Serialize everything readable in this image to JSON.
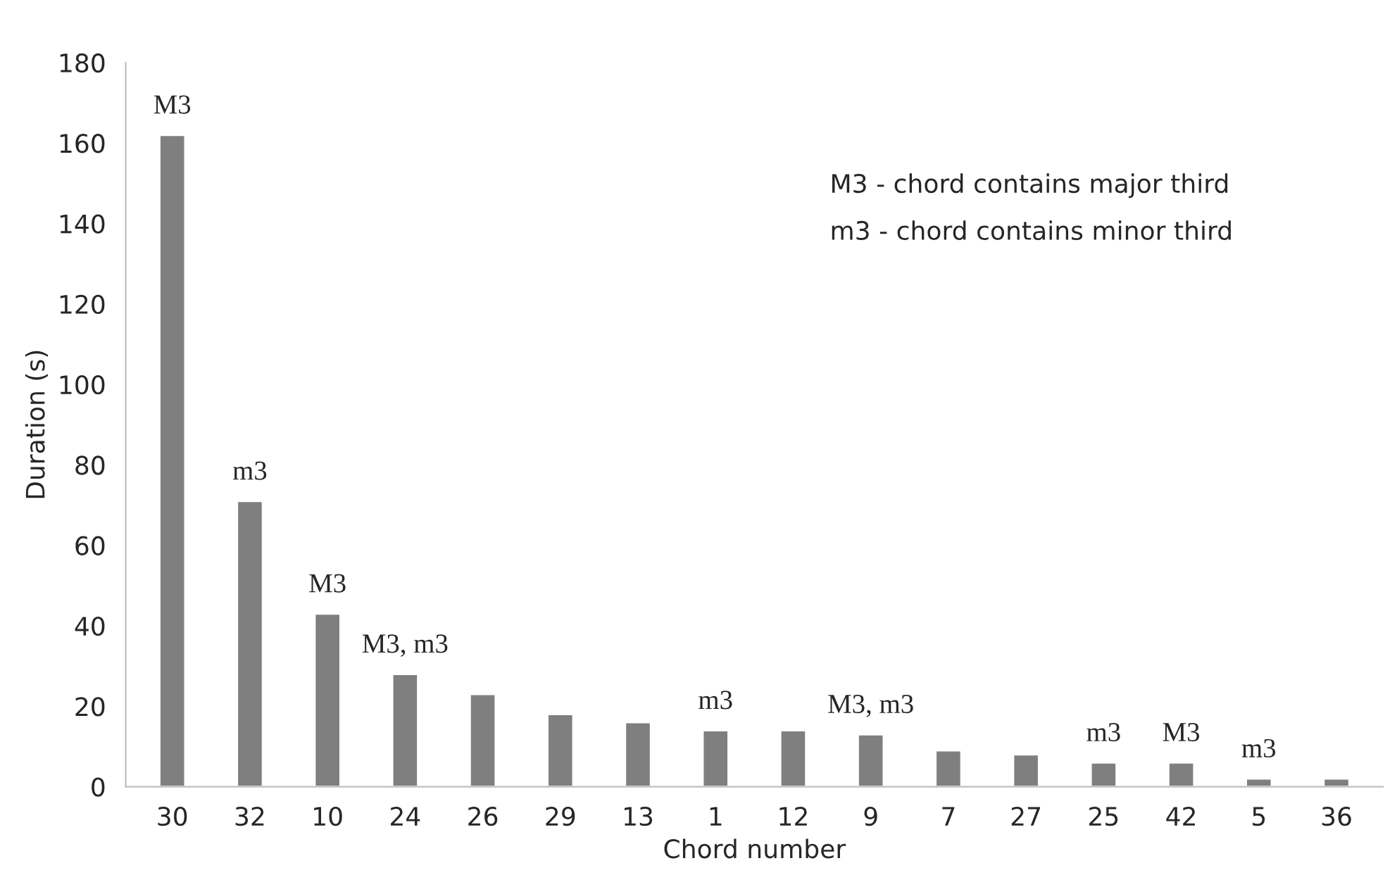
{
  "chart_data": {
    "type": "bar",
    "xlabel": "Chord number",
    "ylabel": "Duration (s)",
    "categories": [
      "30",
      "32",
      "10",
      "24",
      "26",
      "29",
      "13",
      "1",
      "12",
      "9",
      "7",
      "27",
      "25",
      "42",
      "5",
      "36"
    ],
    "values": [
      162,
      71,
      43,
      28,
      23,
      18,
      16,
      14,
      14,
      13,
      9,
      8,
      6,
      6,
      2,
      2
    ],
    "color": "#7f7f7f",
    "ylim": [
      0,
      180
    ],
    "yticks": [
      0,
      20,
      40,
      60,
      80,
      100,
      120,
      140,
      160,
      180
    ],
    "grid": false,
    "annotations": [
      {
        "text": "M3",
        "x": "30",
        "y": 162
      },
      {
        "text": "m3",
        "x": "32",
        "y": 71
      },
      {
        "text": "M3",
        "x": "10",
        "y": 43
      },
      {
        "text": "M3, m3",
        "x": "24",
        "y": 28
      },
      {
        "text": "m3",
        "x": "1",
        "y": 14
      },
      {
        "text": "M3, m3",
        "x": "9",
        "y": 13
      },
      {
        "text": "m3",
        "x": "25",
        "y": 6
      },
      {
        "text": "M3",
        "x": "42",
        "y": 6
      },
      {
        "text": "m3",
        "x": "5",
        "y": 2
      },
      "M3 - chord contains major third",
      "m3 - chord contains minor third"
    ]
  }
}
